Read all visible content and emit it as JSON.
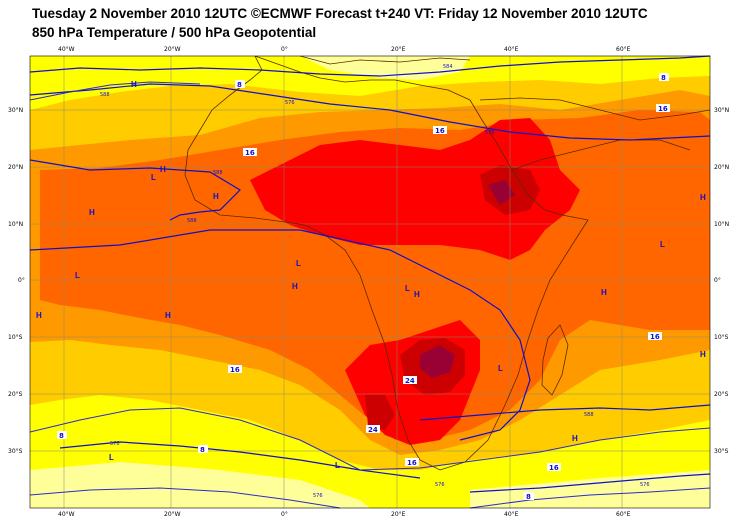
{
  "title": {
    "line1": "Tuesday 2 November 2010 12UTC ©ECMWF Forecast t+240 VT: Friday 12 November 2010 12UTC",
    "line2": "850 hPa Temperature / 500 hPa Geopotential"
  },
  "axes": {
    "lon_ticks": [
      "40°W",
      "20°W",
      "0°",
      "20°E",
      "40°E",
      "60°E"
    ],
    "lat_ticks_left": [
      "30°N",
      "20°N",
      "10°N",
      "0°",
      "10°S",
      "20°S",
      "30°S"
    ],
    "lat_ticks_right": [
      "30°N",
      "20°N",
      "10°N",
      "0°",
      "10°S",
      "20°S",
      "30°S"
    ]
  },
  "colors": {
    "t_8_12": "#ffff00",
    "t_12_16": "#ffcc00",
    "t_16_20": "#ff9900",
    "t_20_24": "#ff6600",
    "t_24_28": "#ff0000",
    "t_28_32": "#cc0000",
    "t_32_plus": "#990033",
    "t_below_8": "#ffff99",
    "contour": "#1010c8",
    "coast": "#5a2a00"
  },
  "pressure_labels": [
    {
      "text": "H"
    },
    {
      "text": "H"
    },
    {
      "text": "H"
    },
    {
      "text": "H"
    },
    {
      "text": "H"
    },
    {
      "text": "H"
    },
    {
      "text": "H"
    },
    {
      "text": "H"
    },
    {
      "text": "H"
    },
    {
      "text": "H"
    },
    {
      "text": "H"
    },
    {
      "text": "H"
    },
    {
      "text": "L"
    },
    {
      "text": "L"
    },
    {
      "text": "L"
    },
    {
      "text": "L"
    },
    {
      "text": "L"
    },
    {
      "text": "L"
    },
    {
      "text": "L"
    },
    {
      "text": "L"
    }
  ],
  "temp_contour_labels": [
    "8",
    "8",
    "16",
    "16",
    "16",
    "16",
    "16",
    "16",
    "24",
    "24",
    "8",
    "8",
    "16",
    "8"
  ],
  "geo_contour_labels": [
    "588",
    "576",
    "588",
    "588",
    "576",
    "576",
    "576",
    "588",
    "576",
    "576",
    "584"
  ]
}
